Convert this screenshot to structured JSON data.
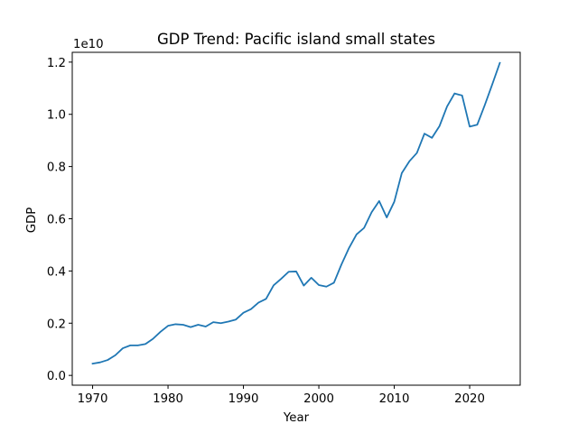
{
  "chart_data": {
    "type": "line",
    "title": "GDP Trend: Pacific island small states",
    "xlabel": "Year",
    "ylabel": "GDP",
    "y_offset_label": "1e10",
    "xlim": [
      1967.3,
      2026.7
    ],
    "ylim": [
      -0.0375,
      1.2375
    ],
    "x_ticks": [
      1970,
      1980,
      1990,
      2000,
      2010,
      2020
    ],
    "x_tick_labels": [
      "1970",
      "1980",
      "1990",
      "2000",
      "2010",
      "2020"
    ],
    "y_ticks": [
      0.0,
      0.2,
      0.4,
      0.6,
      0.8,
      1.0,
      1.2
    ],
    "y_tick_labels": [
      "0.0",
      "0.2",
      "0.4",
      "0.6",
      "0.8",
      "1.0",
      "1.2"
    ],
    "grid": false,
    "legend": "none",
    "line_color": "#1f77b4",
    "series": [
      {
        "x": [
          1970,
          1971,
          1972,
          1973,
          1974,
          1975,
          1976,
          1977,
          1978,
          1979,
          1980,
          1981,
          1982,
          1983,
          1984,
          1985,
          1986,
          1987,
          1988,
          1989,
          1990,
          1991,
          1992,
          1993,
          1994,
          1995,
          1996,
          1997,
          1998,
          1999,
          2000,
          2001,
          2002,
          2003,
          2004,
          2005,
          2006,
          2007,
          2008,
          2009,
          2010,
          2011,
          2012,
          2013,
          2014,
          2015,
          2016,
          2017,
          2018,
          2019,
          2020,
          2021,
          2022,
          2023,
          2024
        ],
        "values": [
          0.045,
          0.05,
          0.059,
          0.077,
          0.104,
          0.115,
          0.115,
          0.12,
          0.14,
          0.167,
          0.19,
          0.196,
          0.194,
          0.185,
          0.194,
          0.187,
          0.204,
          0.2,
          0.206,
          0.214,
          0.24,
          0.254,
          0.279,
          0.293,
          0.345,
          0.37,
          0.397,
          0.398,
          0.344,
          0.374,
          0.346,
          0.34,
          0.355,
          0.425,
          0.488,
          0.54,
          0.565,
          0.625,
          0.668,
          0.605,
          0.665,
          0.775,
          0.82,
          0.852,
          0.926,
          0.91,
          0.955,
          1.03,
          1.08,
          1.072,
          0.953,
          0.96,
          1.035,
          1.115,
          1.197
        ]
      }
    ]
  }
}
